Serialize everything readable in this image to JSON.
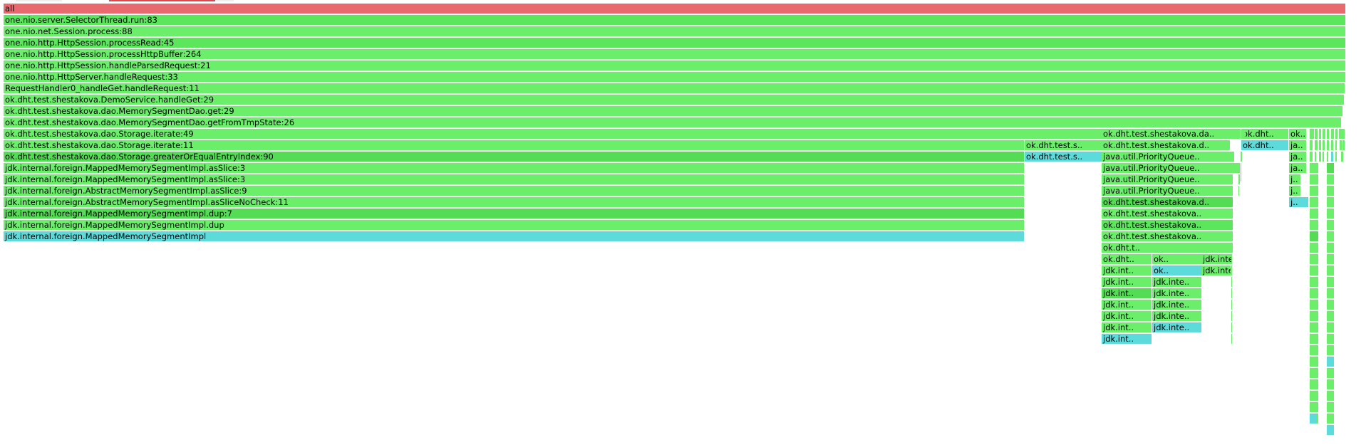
{
  "colors": {
    "root": "#e86a6f",
    "java_a": "#6bef6b",
    "java_b": "#5be65b",
    "java_c": "#54dd54",
    "inline": "#5ddbdb",
    "tab_active": "#e0454b",
    "tab_inactive": "#eeeeee"
  },
  "flamegraph": {
    "root_label": "all",
    "frames": [
      {
        "id": "f0",
        "label": "all",
        "kind": "root"
      },
      {
        "id": "f1",
        "label": "one.nio.server.SelectorThread.run:83",
        "kind": "java_b"
      },
      {
        "id": "f2",
        "label": "one.nio.net.Session.process:88",
        "kind": "java_a"
      },
      {
        "id": "f3",
        "label": "one.nio.http.HttpSession.processRead:45",
        "kind": "java_b"
      },
      {
        "id": "f4",
        "label": "one.nio.http.HttpSession.processHttpBuffer:264",
        "kind": "java_a"
      },
      {
        "id": "f5",
        "label": "one.nio.http.HttpSession.handleParsedRequest:21",
        "kind": "java_a"
      },
      {
        "id": "f6",
        "label": "one.nio.http.HttpServer.handleRequest:33",
        "kind": "java_a"
      },
      {
        "id": "f7",
        "label": "RequestHandler0_handleGet.handleRequest:11",
        "kind": "java_a"
      },
      {
        "id": "f8",
        "label": "ok.dht.test.shestakova.DemoService.handleGet:29",
        "kind": "java_a"
      },
      {
        "id": "f9",
        "label": "ok.dht.test.shestakova.dao.MemorySegmentDao.get:29",
        "kind": "java_a"
      },
      {
        "id": "f10",
        "label": "ok.dht.test.shestakova.dao.MemorySegmentDao.getFromTmpState:26",
        "kind": "java_a"
      },
      {
        "id": "f11",
        "label": "ok.dht.test.shestakova.dao.Storage.iterate:49",
        "kind": "java_a"
      },
      {
        "id": "f12",
        "label": "ok.dht.test.shestakova.da..",
        "kind": "java_a"
      },
      {
        "id": "f13",
        "label": "ok.dht..",
        "kind": "java_a"
      },
      {
        "id": "f14",
        "label": "ok..",
        "kind": "java_a"
      },
      {
        "id": "f15",
        "label": "ok.dht.test.shestakova.dao.Storage.iterate:11",
        "kind": "java_a"
      },
      {
        "id": "f16",
        "label": "ok.dht.test.s..",
        "kind": "java_a"
      },
      {
        "id": "f17",
        "label": "ok.dht.test.shestakova.d..",
        "kind": "java_a"
      },
      {
        "id": "f18",
        "label": "ok.dht..",
        "kind": "inline"
      },
      {
        "id": "f19",
        "label": "ja..",
        "kind": "java_a"
      },
      {
        "id": "f20",
        "label": "ok.dht.test.shestakova.dao.Storage.greaterOrEqualEntryIndex:90",
        "kind": "java_c"
      },
      {
        "id": "f21",
        "label": "ok.dht.test.s..",
        "kind": "inline"
      },
      {
        "id": "f22",
        "label": "java.util.PriorityQueue..",
        "kind": "java_a"
      },
      {
        "id": "f23",
        "label": "ja..",
        "kind": "java_a"
      },
      {
        "id": "f24",
        "label": "jdk.internal.foreign.MappedMemorySegmentImpl.asSlice:3",
        "kind": "java_a"
      },
      {
        "id": "f25",
        "label": "java.util.PriorityQueue..",
        "kind": "java_a"
      },
      {
        "id": "f26",
        "label": "ja..",
        "kind": "java_a"
      },
      {
        "id": "f27",
        "label": "jdk.internal.foreign.MappedMemorySegmentImpl.asSlice:3",
        "kind": "java_a"
      },
      {
        "id": "f28",
        "label": "java.util.PriorityQueue..",
        "kind": "java_a"
      },
      {
        "id": "f29",
        "label": "j..",
        "kind": "java_a"
      },
      {
        "id": "f30",
        "label": "jdk.internal.foreign.AbstractMemorySegmentImpl.asSlice:9",
        "kind": "java_a"
      },
      {
        "id": "f31",
        "label": "java.util.PriorityQueue..",
        "kind": "java_a"
      },
      {
        "id": "f32",
        "label": "j..",
        "kind": "java_a"
      },
      {
        "id": "f33",
        "label": "jdk.internal.foreign.AbstractMemorySegmentImpl.asSliceNoCheck:11",
        "kind": "java_a"
      },
      {
        "id": "f34",
        "label": "ok.dht.test.shestakova.d..",
        "kind": "java_c"
      },
      {
        "id": "f35",
        "label": "j..",
        "kind": "inline"
      },
      {
        "id": "f36",
        "label": "jdk.internal.foreign.MappedMemorySegmentImpl.dup:7",
        "kind": "java_c"
      },
      {
        "id": "f37",
        "label": "ok.dht.test.shestakova..",
        "kind": "java_a"
      },
      {
        "id": "f38",
        "label": "jdk.internal.foreign.MappedMemorySegmentImpl.dup",
        "kind": "java_a"
      },
      {
        "id": "f39",
        "label": "ok.dht.test.shestakova..",
        "kind": "java_b"
      },
      {
        "id": "f40",
        "label": "jdk.internal.foreign.MappedMemorySegmentImpl",
        "kind": "inline"
      },
      {
        "id": "f41",
        "label": "ok.dht.test.shestakova..",
        "kind": "java_a"
      },
      {
        "id": "f42",
        "label": "ok.dht.t..",
        "kind": "java_a"
      },
      {
        "id": "f43",
        "label": "ok.dht..",
        "kind": "java_a"
      },
      {
        "id": "f44",
        "label": "ok..",
        "kind": "java_a"
      },
      {
        "id": "f45",
        "label": "jdk.inte..",
        "kind": "java_a"
      },
      {
        "id": "f46",
        "label": "jdk.int..",
        "kind": "java_a"
      },
      {
        "id": "f47",
        "label": "ok..",
        "kind": "inline"
      },
      {
        "id": "f48",
        "label": "jdk.inte..",
        "kind": "java_a"
      },
      {
        "id": "f49",
        "label": "jdk.int..",
        "kind": "java_a"
      },
      {
        "id": "f50",
        "label": "jdk.inte..",
        "kind": "java_a"
      },
      {
        "id": "f51",
        "label": "jdk.int..",
        "kind": "java_c"
      },
      {
        "id": "f52",
        "label": "jdk.inte..",
        "kind": "java_a"
      },
      {
        "id": "f53",
        "label": "jdk.int..",
        "kind": "java_a"
      },
      {
        "id": "f54",
        "label": "jdk.inte..",
        "kind": "java_a"
      },
      {
        "id": "f55",
        "label": "jdk.int..",
        "kind": "java_a"
      },
      {
        "id": "f56",
        "label": "jdk.inte..",
        "kind": "java_a"
      },
      {
        "id": "f57",
        "label": "jdk.int..",
        "kind": "java_a"
      },
      {
        "id": "f58",
        "label": "jdk.inte..",
        "kind": "inline"
      },
      {
        "id": "f59",
        "label": "jdk.int..",
        "kind": "inline"
      }
    ]
  }
}
